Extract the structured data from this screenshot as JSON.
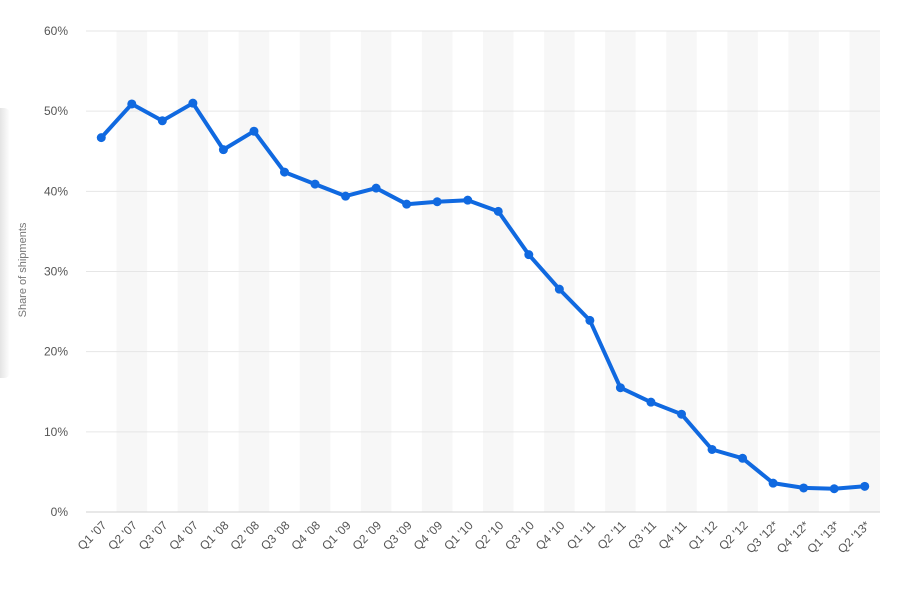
{
  "chart_data": {
    "type": "line",
    "title": "",
    "xlabel": "",
    "ylabel": "Share of shipments",
    "ylim": [
      0,
      60
    ],
    "y_ticks": [
      "0%",
      "10%",
      "20%",
      "30%",
      "40%",
      "50%",
      "60%"
    ],
    "grid": true,
    "legend": "none",
    "categories": [
      "Q1 '07",
      "Q2 '07",
      "Q3 '07",
      "Q4 '07",
      "Q1 '08",
      "Q2 '08",
      "Q3 '08",
      "Q4 '08",
      "Q1 '09",
      "Q2 '09",
      "Q3 '09",
      "Q4 '09",
      "Q1 '10",
      "Q2 '10",
      "Q3 '10",
      "Q4 '10",
      "Q1 '11",
      "Q2 '11",
      "Q3 '11",
      "Q4 '11",
      "Q1 '12",
      "Q2 '12",
      "Q3 '12*",
      "Q4 '12*",
      "Q1 '13*",
      "Q2 '13*"
    ],
    "series": [
      {
        "values": [
          46.7,
          50.9,
          48.8,
          51.0,
          45.2,
          47.5,
          42.4,
          40.9,
          39.4,
          40.4,
          38.4,
          38.7,
          38.9,
          37.5,
          32.1,
          27.8,
          23.9,
          15.5,
          13.7,
          12.2,
          7.8,
          6.7,
          3.6,
          3.0,
          2.9,
          3.2
        ]
      }
    ],
    "colors": {
      "line": "#1069e0",
      "band": "#f7f7f7",
      "grid": "#e6e6e6"
    }
  }
}
